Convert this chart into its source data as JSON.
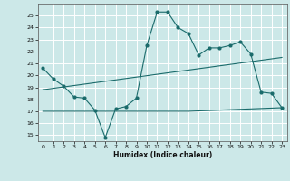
{
  "xlabel": "Humidex (Indice chaleur)",
  "bg_color": "#cce8e8",
  "line_color": "#1a6b6b",
  "xlim": [
    -0.5,
    23.5
  ],
  "ylim": [
    14.5,
    26.0
  ],
  "xticks": [
    0,
    1,
    2,
    3,
    4,
    5,
    6,
    7,
    8,
    9,
    10,
    11,
    12,
    13,
    14,
    15,
    16,
    17,
    18,
    19,
    20,
    21,
    22,
    23
  ],
  "yticks": [
    15,
    16,
    17,
    18,
    19,
    20,
    21,
    22,
    23,
    24,
    25
  ],
  "curve1_x": [
    0,
    1,
    2,
    3,
    4,
    5,
    6,
    7,
    8,
    9,
    10,
    11,
    12,
    13,
    14,
    15,
    16,
    17,
    18,
    19,
    20,
    21,
    22,
    23
  ],
  "curve1_y": [
    20.6,
    19.7,
    19.1,
    18.2,
    18.1,
    17.1,
    14.8,
    17.2,
    17.4,
    18.1,
    22.5,
    25.3,
    25.3,
    24.0,
    23.5,
    21.7,
    22.3,
    22.3,
    22.5,
    22.8,
    21.8,
    18.6,
    18.5,
    17.3
  ],
  "curve2_x": [
    0,
    23
  ],
  "curve2_y": [
    18.8,
    21.5
  ],
  "curve3_x": [
    0,
    14,
    23
  ],
  "curve3_y": [
    17.0,
    17.0,
    17.3
  ],
  "figsize": [
    3.2,
    2.0
  ],
  "dpi": 100
}
